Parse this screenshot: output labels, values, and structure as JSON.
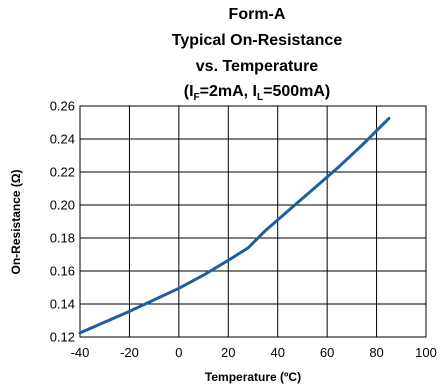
{
  "chart_data": {
    "type": "line",
    "title_lines": [
      "Form-A",
      "Typical On-Resistance",
      "vs. Temperature"
    ],
    "condition": {
      "open": "(I",
      "sub1": "F",
      "mid": "=2mA, I",
      "sub2": "L",
      "close": "=500mA)"
    },
    "xlabel": "Temperature (ºC)",
    "ylabel": "On-Resistance (Ω)",
    "xlim": [
      -40,
      100
    ],
    "ylim": [
      0.12,
      0.26
    ],
    "x_ticks": [
      "-40",
      "-20",
      "0",
      "20",
      "40",
      "60",
      "80",
      "100"
    ],
    "y_ticks": [
      "0.12",
      "0.14",
      "0.16",
      "0.18",
      "0.20",
      "0.22",
      "0.24",
      "0.26"
    ],
    "grid": true,
    "line_color": "#1f5fa0",
    "series": [
      {
        "x": [
          -40,
          -30,
          -20,
          -10,
          0,
          10,
          20,
          28,
          35,
          45,
          55,
          65,
          75,
          85
        ],
        "y": [
          0.1225,
          0.129,
          0.1355,
          0.1425,
          0.1495,
          0.1575,
          0.1665,
          0.174,
          0.1845,
          0.1975,
          0.2105,
          0.2235,
          0.2375,
          0.2525
        ]
      }
    ]
  }
}
